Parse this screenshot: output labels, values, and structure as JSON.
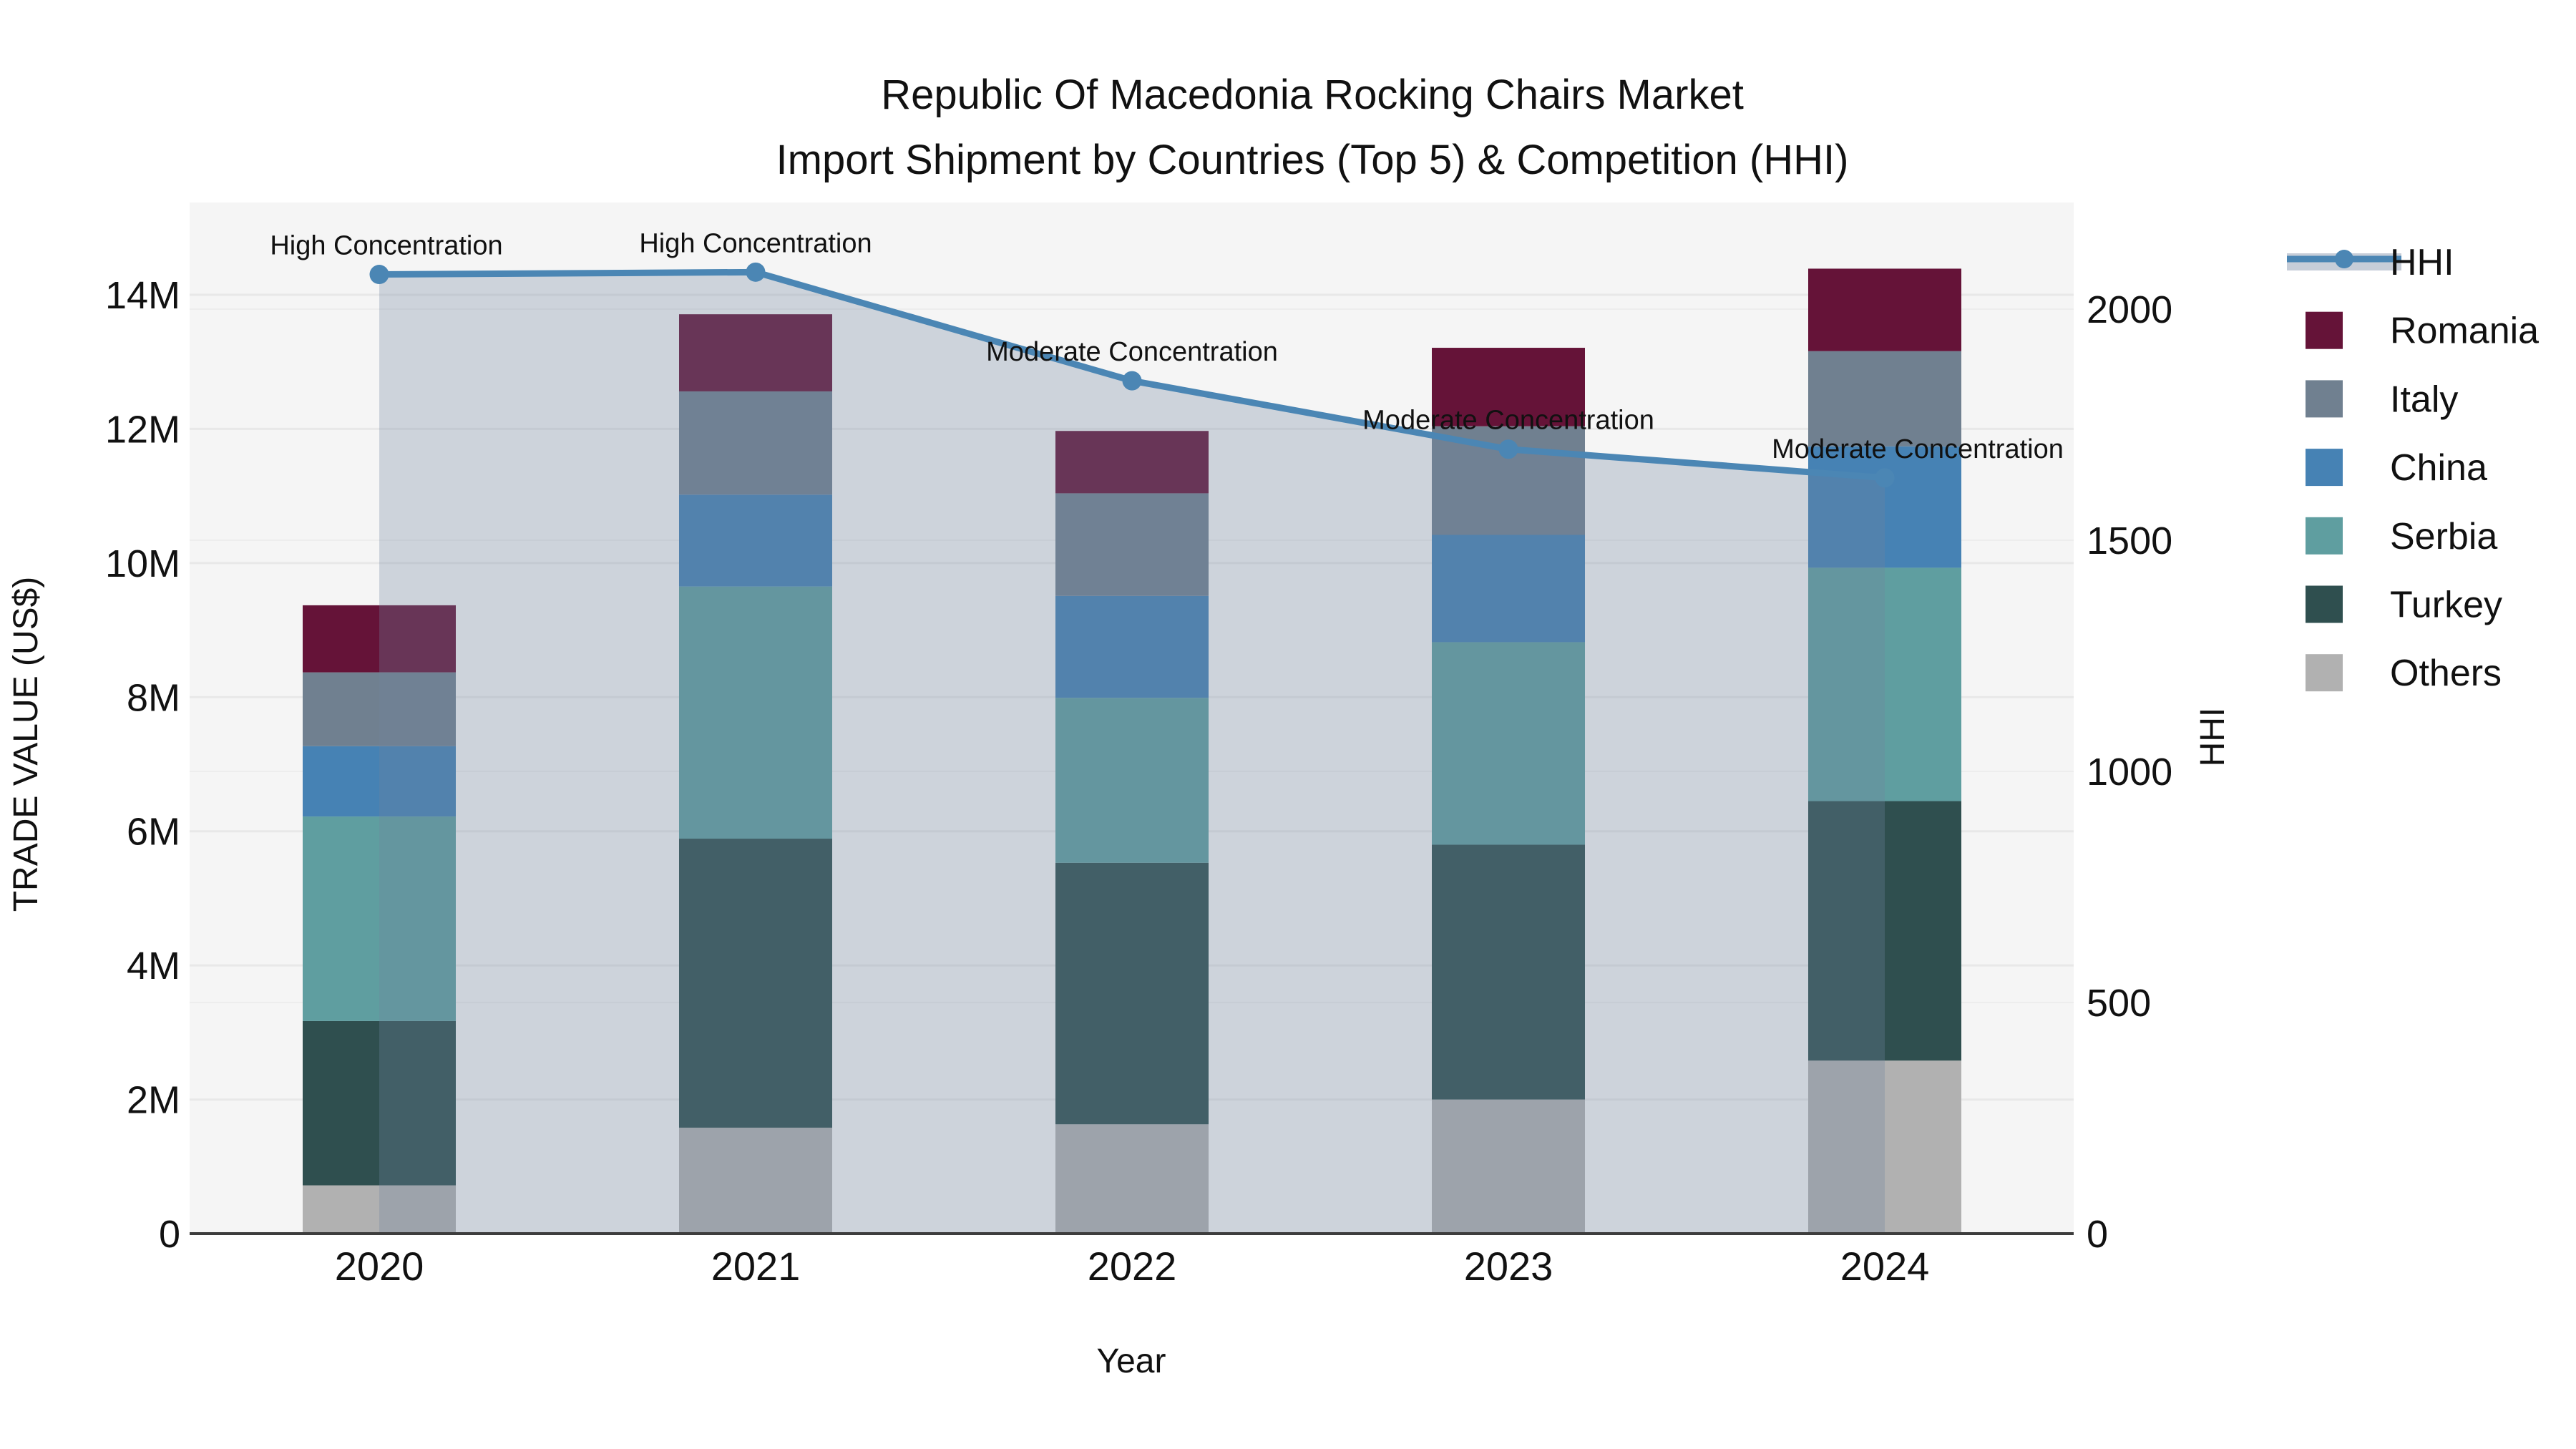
{
  "title": {
    "line1": "Republic Of Macedonia Rocking Chairs Market",
    "line2": "Import Shipment by Countries (Top 5) & Competition (HHI)"
  },
  "axes": {
    "x": {
      "label": "Year",
      "categories": [
        "2020",
        "2021",
        "2022",
        "2023",
        "2024"
      ]
    },
    "y_left": {
      "label": "TRADE VALUE (US$)",
      "tick_labels": [
        "0",
        "2M",
        "4M",
        "6M",
        "8M",
        "10M",
        "12M",
        "14M"
      ],
      "tick_values_millions": [
        0,
        2,
        4,
        6,
        8,
        10,
        12,
        14
      ]
    },
    "y_right": {
      "label": "HHI",
      "tick_labels": [
        "0",
        "500",
        "1000",
        "1500",
        "2000"
      ],
      "tick_values": [
        0,
        500,
        1000,
        1500,
        2000
      ]
    }
  },
  "chart_data": {
    "type": "bar+line",
    "title": "Republic Of Macedonia Rocking Chairs Market — Import Shipment by Countries (Top 5) & Competition (HHI)",
    "categories": [
      "2020",
      "2021",
      "2022",
      "2023",
      "2024"
    ],
    "bar_unit": "M US$",
    "stack_note": "series listed top-of-stack first; stacking bottom-to-top is reverse order",
    "series": [
      {
        "name": "Romania",
        "color": "#651338",
        "values": [
          1.0,
          1.15,
          0.93,
          1.17,
          1.23
        ]
      },
      {
        "name": "Italy",
        "color": "#708090",
        "values": [
          1.1,
          1.54,
          1.53,
          1.62,
          1.42
        ]
      },
      {
        "name": "China",
        "color": "#4682b4",
        "values": [
          1.05,
          1.37,
          1.52,
          1.6,
          1.81
        ]
      },
      {
        "name": "Serbia",
        "color": "#5f9ea0",
        "values": [
          3.05,
          3.76,
          2.46,
          3.02,
          3.48
        ]
      },
      {
        "name": "Turkey",
        "color": "#2f4f4f",
        "values": [
          2.45,
          4.31,
          3.9,
          3.8,
          3.87
        ]
      },
      {
        "name": "Others",
        "color": "#b1b1b1",
        "values": [
          0.72,
          1.58,
          1.63,
          2.0,
          2.58
        ]
      }
    ],
    "bar_totals_millions": [
      9.37,
      13.71,
      11.97,
      13.21,
      14.39
    ],
    "line_series": {
      "name": "HHI",
      "color": "#4b86b4",
      "fill_color": "rgba(113,133,158,0.30)",
      "values": [
        2075,
        2080,
        1845,
        1697,
        1635
      ]
    },
    "annotations": [
      "High Concentration",
      "High Concentration",
      "Moderate Concentration",
      "Moderate Concentration",
      "Moderate Concentration"
    ],
    "legend_position": "right",
    "grid": true,
    "ylim_left_millions": [
      0,
      15.4
    ],
    "ylim_right": [
      0,
      2230
    ]
  },
  "legend": {
    "entries": [
      {
        "label": "HHI",
        "type": "line",
        "color": "#4b86b4"
      },
      {
        "label": "Romania",
        "type": "swatch",
        "color": "#651338"
      },
      {
        "label": "Italy",
        "type": "swatch",
        "color": "#708090"
      },
      {
        "label": "China",
        "type": "swatch",
        "color": "#4682b4"
      },
      {
        "label": "Serbia",
        "type": "swatch",
        "color": "#5f9ea0"
      },
      {
        "label": "Turkey",
        "type": "swatch",
        "color": "#2f4f4f"
      },
      {
        "label": "Others",
        "type": "swatch",
        "color": "#b1b1b1"
      }
    ]
  },
  "colors": {
    "plot_background": "#f5f5f5",
    "page_background": "#ffffff",
    "gridline": "#e8e8e8",
    "gridline_right": "#ededed",
    "axis_line": "#3d3d3d",
    "text": "#111111",
    "hhi_line": "#4b86b4",
    "hhi_area_fill": "rgba(113,133,158,0.30)",
    "legend_line_band": "#c6cdd8"
  }
}
